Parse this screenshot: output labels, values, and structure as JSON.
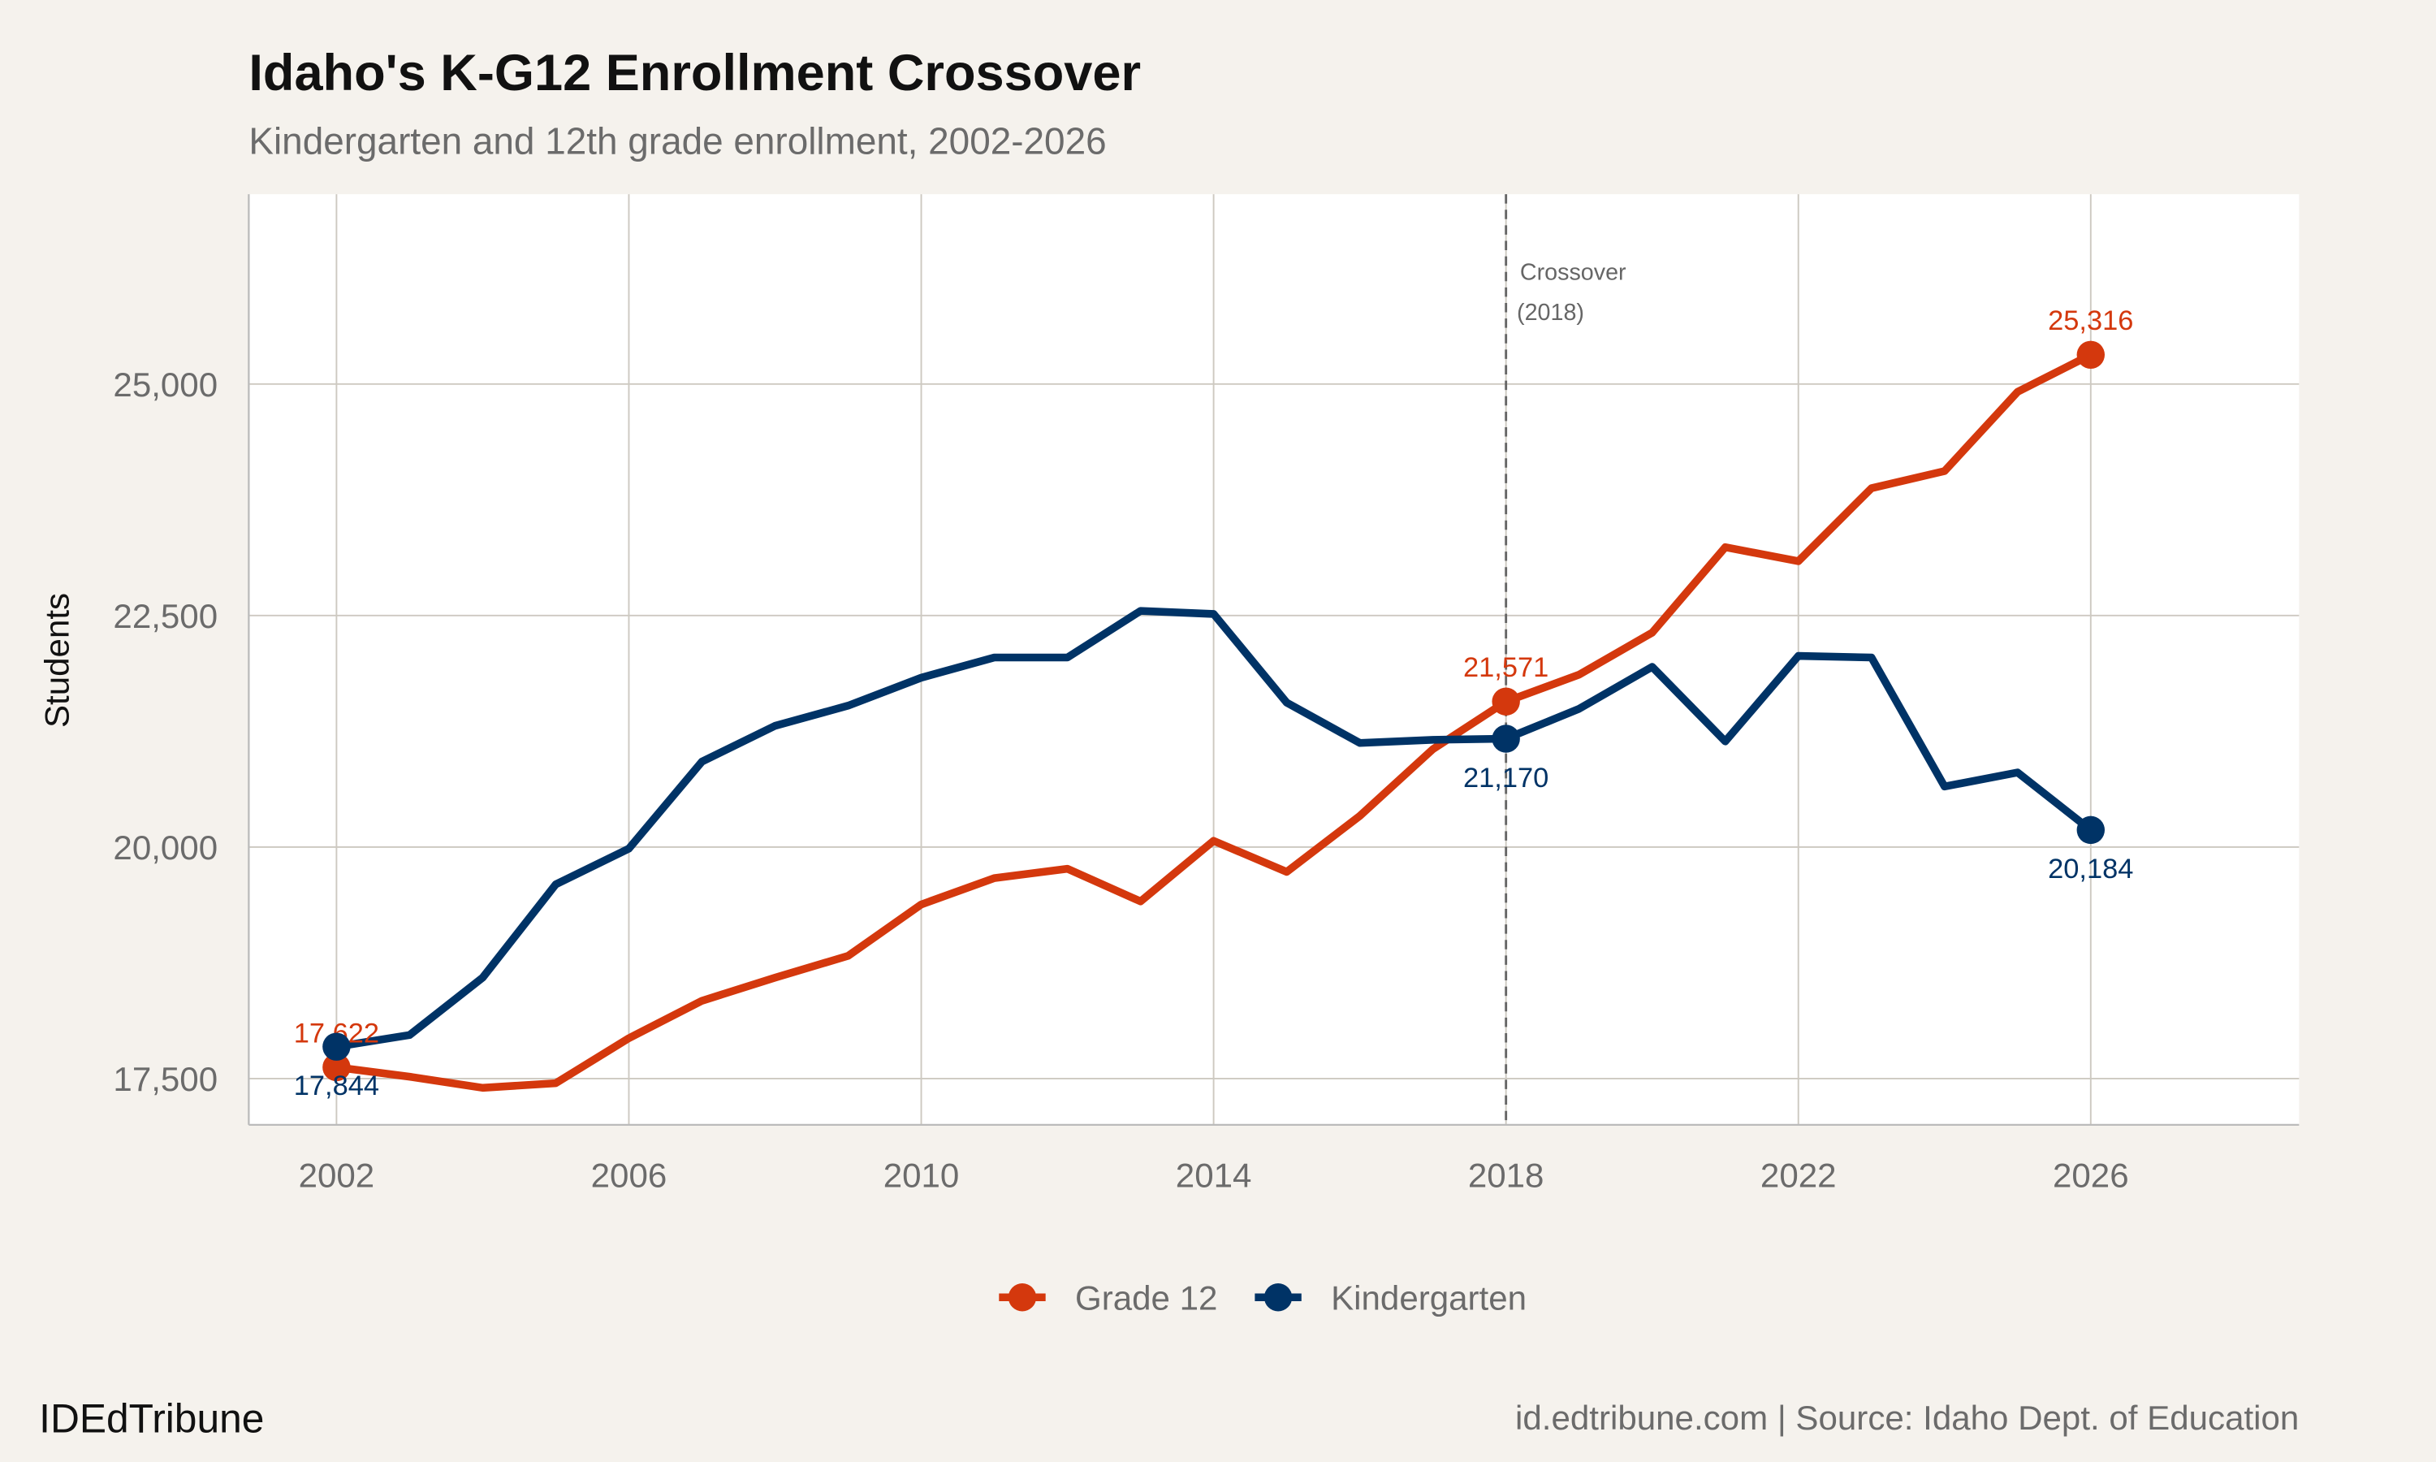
{
  "chart_data": {
    "type": "line",
    "title": "Idaho's K-G12 Enrollment Crossover",
    "subtitle": "Kindergarten and 12th grade enrollment, 2002-2026",
    "xlabel": "",
    "ylabel": "Students",
    "xlim": [
      2000.8,
      2028.85
    ],
    "ylim": [
      17000,
      27050
    ],
    "x_ticks": [
      2002,
      2006,
      2010,
      2014,
      2018,
      2022,
      2026
    ],
    "y_ticks": [
      17500,
      20000,
      22500,
      25000
    ],
    "y_tick_labels": [
      "17,500",
      "20,000",
      "22,500",
      "25,000"
    ],
    "grid": true,
    "legend_position": "bottom",
    "x": [
      2002,
      2003,
      2004,
      2005,
      2006,
      2007,
      2008,
      2009,
      2010,
      2011,
      2012,
      2013,
      2014,
      2015,
      2016,
      2017,
      2018,
      2019,
      2020,
      2021,
      2022,
      2023,
      2024,
      2025,
      2026
    ],
    "series": [
      {
        "name": "Grade 12",
        "color": "#d4380d",
        "values": [
          17622,
          17520,
          17400,
          17450,
          17936,
          18340,
          18590,
          18825,
          19380,
          19665,
          19765,
          19413,
          20067,
          19732,
          20336,
          21057,
          21571,
          21862,
          22315,
          23238,
          23087,
          23875,
          24060,
          24916,
          25316
        ]
      },
      {
        "name": "Kindergarten",
        "color": "#003366",
        "values": [
          17844,
          17970,
          18590,
          19597,
          19983,
          20923,
          21309,
          21527,
          21829,
          22047,
          22047,
          22550,
          22517,
          21560,
          21124,
          21158,
          21170,
          21493,
          21946,
          21141,
          22064,
          22047,
          20654,
          20805,
          20184
        ]
      }
    ],
    "point_labels": [
      {
        "series": 0,
        "x": 2002,
        "text": "17,622",
        "pos": "above"
      },
      {
        "series": 1,
        "x": 2002,
        "text": "17,844",
        "pos": "below"
      },
      {
        "series": 0,
        "x": 2018,
        "text": "21,571",
        "pos": "above"
      },
      {
        "series": 1,
        "x": 2018,
        "text": "21,170",
        "pos": "below"
      },
      {
        "series": 0,
        "x": 2026,
        "text": "25,316",
        "pos": "above"
      },
      {
        "series": 1,
        "x": 2026,
        "text": "20,184",
        "pos": "below"
      }
    ],
    "annotation": {
      "x": 2018,
      "line1": "Crossover",
      "line2": "(2018)"
    }
  },
  "footer": {
    "left": "IDEdTribune",
    "right": "id.edtribune.com | Source: Idaho Dept. of Education"
  },
  "colors": {
    "background": "#f5f2ed",
    "panel": "#ffffff",
    "grid": "#cdc9c1"
  }
}
